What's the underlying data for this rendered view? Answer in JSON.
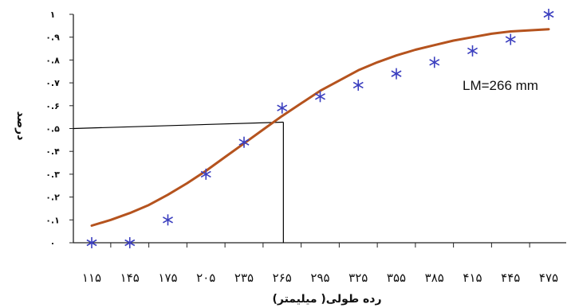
{
  "chart_data": {
    "type": "scatter",
    "title": "",
    "xlabel": "رده طولی( میلیمتر)",
    "ylabel": "درصد",
    "annotation": "LM=266 mm",
    "categories": [
      "۱۱۵",
      "۱۴۵",
      "۱۷۵",
      "۲۰۵",
      "۲۳۵",
      "۲۶۵",
      "۲۹۵",
      "۳۲۵",
      "۳۵۵",
      "۳۸۵",
      "۴۱۵",
      "۴۴۵",
      "۴۷۵"
    ],
    "x": [
      115,
      130,
      145,
      160,
      175,
      190,
      205,
      220,
      235,
      250,
      265,
      280,
      295,
      310,
      325,
      340,
      355,
      370,
      385,
      400,
      415,
      430,
      445,
      460,
      475
    ],
    "y_ticks": [
      "۰",
      "۰.۱",
      "۰.۲",
      "۰.۳",
      "۰.۴",
      "۰.۵",
      "۰.۶",
      "۰.۷",
      "۰.۸",
      "۰.۹",
      "۱"
    ],
    "ylim": [
      0,
      1
    ],
    "xlim": [
      115,
      475
    ],
    "grid": false,
    "series": [
      {
        "kind": "observed",
        "marker": "asterisk",
        "color": "#3b3fbf",
        "x": [
          115,
          145,
          175,
          205,
          235,
          265,
          295,
          325,
          355,
          385,
          415,
          445,
          475
        ],
        "y": [
          0,
          0,
          0.1,
          0.3,
          0.44,
          0.59,
          0.64,
          0.69,
          0.74,
          0.79,
          0.84,
          0.89,
          1.0
        ]
      },
      {
        "kind": "fitted",
        "color": "#b5531e",
        "x": [
          115,
          130,
          145,
          160,
          175,
          190,
          205,
          220,
          235,
          250,
          265,
          280,
          295,
          310,
          325,
          340,
          355,
          370,
          385,
          400,
          415,
          430,
          445,
          460,
          475
        ],
        "y": [
          0.075,
          0.1,
          0.13,
          0.165,
          0.21,
          0.26,
          0.315,
          0.375,
          0.435,
          0.495,
          0.555,
          0.61,
          0.665,
          0.71,
          0.755,
          0.79,
          0.82,
          0.845,
          0.865,
          0.885,
          0.9,
          0.915,
          0.925,
          0.93,
          0.935
        ]
      }
    ],
    "reference_lines": {
      "x": 266,
      "y": 0.5
    }
  }
}
